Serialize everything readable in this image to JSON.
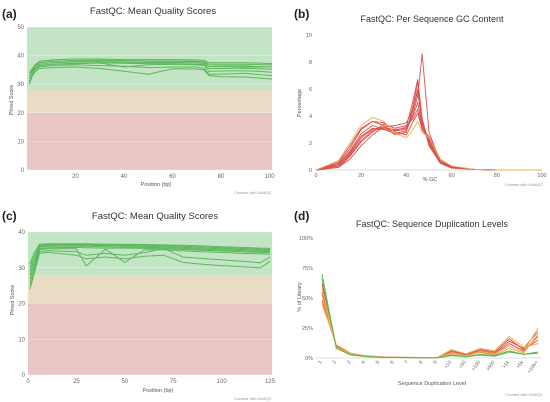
{
  "chart_data": [
    {
      "panel_label": "(a)",
      "type": "line",
      "title": "FastQC: Mean Quality Scores",
      "xlabel": "Position (bp)",
      "ylabel": "Phred Score",
      "xlim": [
        0,
        101
      ],
      "ylim": [
        0,
        50
      ],
      "xticks": [
        20,
        40,
        60,
        80,
        100
      ],
      "yticks": [
        0,
        10,
        20,
        30,
        40,
        50
      ],
      "bands": [
        {
          "from": 28,
          "to": 50,
          "color": "#c3e5c5"
        },
        {
          "from": 20,
          "to": 28,
          "color": "#e8dcc4"
        },
        {
          "from": 0,
          "to": 20,
          "color": "#e8c6c6"
        }
      ],
      "series_color": "#5cb85c",
      "credit": "Created with MultiQC",
      "x": [
        1,
        3,
        5,
        10,
        20,
        30,
        40,
        50,
        60,
        70,
        73,
        75,
        80,
        90,
        95,
        101
      ],
      "series": [
        {
          "values": [
            34,
            36.5,
            38,
            38.5,
            38.8,
            38.8,
            38.6,
            38.6,
            38.6,
            38.5,
            38.3,
            37.5,
            37.5,
            37.5,
            37.4,
            37.2
          ]
        },
        {
          "values": [
            33,
            36,
            37.5,
            38,
            38.3,
            38.4,
            38.2,
            38.1,
            38.1,
            38.0,
            37.8,
            37.0,
            37.0,
            37.0,
            36.9,
            36.7
          ]
        },
        {
          "values": [
            32,
            35,
            37,
            37.5,
            37.8,
            37.9,
            37.7,
            37.6,
            37.6,
            37.5,
            37.2,
            36.3,
            36.4,
            36.4,
            36.2,
            36.0
          ]
        },
        {
          "values": [
            31,
            34.5,
            36.5,
            37,
            37.3,
            37.5,
            37.3,
            37.2,
            37.2,
            37.0,
            36.8,
            35.5,
            35.5,
            35.6,
            35.4,
            35.2
          ]
        },
        {
          "values": [
            33,
            35.5,
            36.5,
            37,
            37.2,
            37.4,
            36,
            36.8,
            37,
            36.8,
            36.5,
            34.5,
            34.6,
            34.7,
            34.5,
            34.2
          ]
        },
        {
          "values": [
            30,
            35,
            36,
            36.5,
            36.8,
            36.5,
            36.3,
            35.8,
            36,
            36.0,
            35.5,
            33.5,
            33.5,
            33.8,
            33.4,
            33.0
          ]
        },
        {
          "values": [
            31,
            34,
            35.5,
            35.8,
            36,
            35.5,
            34.5,
            33.5,
            35.4,
            35.3,
            35.0,
            33.0,
            32.6,
            32.5,
            32.2,
            31.8
          ]
        },
        {
          "values": [
            34,
            36,
            37.5,
            38,
            38.2,
            38.3,
            38.2,
            38.0,
            38.0,
            37.9,
            37.7,
            36.2,
            36.1,
            36.0,
            36.0,
            36.0
          ]
        }
      ]
    },
    {
      "panel_label": "(b)",
      "type": "line",
      "title": "FastQC: Per Sequence GC Content",
      "xlabel": "% GC",
      "ylabel": "Percentage",
      "xlim": [
        0,
        100
      ],
      "ylim": [
        0,
        10
      ],
      "xticks": [
        0,
        20,
        40,
        60,
        80,
        100
      ],
      "yticks": [
        0,
        2,
        4,
        6,
        8,
        10
      ],
      "credit": "Created with MultiQC",
      "x": [
        0,
        10,
        15,
        20,
        25,
        30,
        35,
        40,
        43,
        45,
        47,
        50,
        55,
        60,
        70,
        80,
        100
      ],
      "series": [
        {
          "color": "#d9534f",
          "values": [
            0,
            0.3,
            1.2,
            2.4,
            3.0,
            3.2,
            2.9,
            3.0,
            4.0,
            5.0,
            3.2,
            2.3,
            0.7,
            0.2,
            0.05,
            0,
            0
          ]
        },
        {
          "color": "#d9534f",
          "values": [
            0,
            0.4,
            1.4,
            2.7,
            3.3,
            3.0,
            2.7,
            2.9,
            4.5,
            6.0,
            3.5,
            2.0,
            0.6,
            0.2,
            0.05,
            0,
            0
          ]
        },
        {
          "color": "#d9534f",
          "values": [
            0,
            0.2,
            1.0,
            2.1,
            2.8,
            3.4,
            3.1,
            3.3,
            3.8,
            4.5,
            3.0,
            2.5,
            0.8,
            0.25,
            0.05,
            0,
            0
          ]
        },
        {
          "color": "#d9534f",
          "values": [
            0,
            0.5,
            1.6,
            3.0,
            3.6,
            3.3,
            2.6,
            2.8,
            4.8,
            6.5,
            3.6,
            1.8,
            0.5,
            0.15,
            0.05,
            0,
            0
          ]
        },
        {
          "color": "#d9534f",
          "values": [
            0,
            0.3,
            1.1,
            2.2,
            2.9,
            3.1,
            3.0,
            3.1,
            4.2,
            5.5,
            8.6,
            2.8,
            0.6,
            0.2,
            0.05,
            0,
            0
          ]
        },
        {
          "color": "#d9534f",
          "values": [
            0,
            0.6,
            1.8,
            3.1,
            3.6,
            3.5,
            2.8,
            2.6,
            3.6,
            4.2,
            3.0,
            2.2,
            0.7,
            0.2,
            0.05,
            0,
            0
          ]
        },
        {
          "color": "#d9534f",
          "values": [
            0,
            0.2,
            0.8,
            1.8,
            2.6,
            3.2,
            3.3,
            3.5,
            4.6,
            5.8,
            3.4,
            2.1,
            0.6,
            0.2,
            0.05,
            0,
            0
          ]
        },
        {
          "color": "#d9534f",
          "values": [
            0,
            0.4,
            1.3,
            2.5,
            3.1,
            3.0,
            2.9,
            3.2,
            5.2,
            6.7,
            3.8,
            1.9,
            0.5,
            0.15,
            0.05,
            0,
            0
          ]
        },
        {
          "color": "#f0ad4e",
          "values": [
            0,
            0.7,
            2.0,
            3.3,
            3.9,
            3.6,
            2.7,
            2.4,
            3.0,
            3.6,
            2.8,
            2.4,
            0.8,
            0.3,
            0.05,
            0,
            0
          ]
        }
      ]
    },
    {
      "panel_label": "(c)",
      "type": "line",
      "title": "FastQC: Mean Quality Scores",
      "xlabel": "Position (bp)",
      "ylabel": "Phred Score",
      "xlim": [
        0,
        126
      ],
      "ylim": [
        0,
        40
      ],
      "xticks": [
        0,
        25,
        50,
        75,
        100,
        125
      ],
      "yticks": [
        0,
        10,
        20,
        30,
        40
      ],
      "bands": [
        {
          "from": 28,
          "to": 40,
          "color": "#c3e5c5"
        },
        {
          "from": 20,
          "to": 28,
          "color": "#e8dcc4"
        },
        {
          "from": 0,
          "to": 20,
          "color": "#e8c6c6"
        }
      ],
      "series_color": "#5cb85c",
      "credit": "Created with MultiQC",
      "x": [
        1,
        3,
        6,
        10,
        25,
        30,
        40,
        50,
        60,
        70,
        80,
        90,
        100,
        110,
        120,
        125
      ],
      "series": [
        {
          "values": [
            30,
            33,
            36.3,
            36.5,
            36.5,
            36.5,
            36.5,
            36.4,
            36.3,
            36.2,
            36.0,
            35.8,
            35.6,
            35.4,
            35.2,
            35.1
          ]
        },
        {
          "values": [
            29,
            32,
            36.0,
            36.3,
            36.3,
            36.3,
            36.2,
            36.1,
            36.0,
            35.9,
            35.7,
            35.5,
            35.3,
            35.1,
            34.9,
            34.8
          ]
        },
        {
          "values": [
            28,
            31,
            35.7,
            36.0,
            36.0,
            36.0,
            35.9,
            35.8,
            35.7,
            35.6,
            35.4,
            35.2,
            35.0,
            34.8,
            34.6,
            34.5
          ]
        },
        {
          "values": [
            27,
            30,
            35.3,
            35.6,
            35.7,
            35.6,
            35.5,
            35.5,
            35.4,
            35.3,
            35.1,
            34.9,
            34.7,
            34.5,
            34.3,
            34.2
          ]
        },
        {
          "values": [
            26,
            29,
            35.0,
            35.3,
            35.3,
            30.5,
            35.2,
            31.5,
            35.0,
            35.0,
            34.7,
            34.5,
            34.3,
            34.0,
            33.9,
            33.8
          ]
        },
        {
          "values": [
            25,
            28,
            34.5,
            34.8,
            34.5,
            33.5,
            34.0,
            33.5,
            34.2,
            35.4,
            33.0,
            32.6,
            32.2,
            31.8,
            31.4,
            33.0
          ]
        },
        {
          "values": [
            24,
            28,
            34.0,
            34.3,
            33.5,
            32.5,
            33.0,
            32.5,
            33.2,
            33.5,
            31.5,
            31.0,
            30.6,
            30.3,
            30.0,
            31.8
          ]
        },
        {
          "values": [
            31,
            34,
            36.6,
            36.7,
            36.7,
            36.7,
            36.6,
            36.6,
            36.5,
            36.4,
            36.3,
            36.1,
            35.9,
            35.7,
            35.5,
            35.4
          ]
        }
      ]
    },
    {
      "panel_label": "(d)",
      "type": "line",
      "title": "FastQC: Sequence Duplication Levels",
      "xlabel": "Sequence Duplication Level",
      "ylabel": "% of Library",
      "ylim": [
        0,
        100
      ],
      "categories": [
        "1",
        "2",
        "3",
        "4",
        "5",
        "6",
        "7",
        "8",
        "9",
        ">10",
        ">50",
        ">100",
        ">500",
        ">1k",
        ">5k",
        ">10k+"
      ],
      "ytick_labels": [
        "0%",
        "25%",
        "50%",
        "75%",
        "100%"
      ],
      "yticks": [
        0,
        25,
        50,
        75,
        100
      ],
      "credit": "Created with MultiQC",
      "series": [
        {
          "color": "#5cb85c",
          "values": [
            70,
            8,
            2.5,
            1.2,
            0.7,
            0.4,
            0.3,
            0.2,
            0.2,
            2,
            1,
            2.5,
            1.5,
            5,
            3,
            4
          ]
        },
        {
          "color": "#d9534f",
          "values": [
            62,
            9,
            3,
            1.5,
            0.8,
            0.5,
            0.4,
            0.3,
            0.3,
            4,
            2,
            5,
            3,
            12,
            6,
            18
          ]
        },
        {
          "color": "#d9534f",
          "values": [
            55,
            9.5,
            3.5,
            1.6,
            0.9,
            0.6,
            0.4,
            0.3,
            0.3,
            5,
            2.5,
            6,
            4,
            14,
            8,
            22
          ]
        },
        {
          "color": "#d9534f",
          "values": [
            48,
            10,
            3.8,
            1.8,
            1.0,
            0.6,
            0.5,
            0.4,
            0.3,
            6,
            3,
            7,
            5,
            16,
            7,
            15
          ]
        },
        {
          "color": "#f0ad4e",
          "values": [
            58,
            8.5,
            3.2,
            1.5,
            0.8,
            0.5,
            0.4,
            0.3,
            0.3,
            4.5,
            2,
            5.5,
            3.5,
            10,
            5,
            25
          ]
        },
        {
          "color": "#f0ad4e",
          "values": [
            52,
            9,
            3.4,
            1.6,
            0.9,
            0.5,
            0.4,
            0.3,
            0.3,
            3.5,
            1.8,
            4.5,
            2.5,
            8,
            4,
            20
          ]
        },
        {
          "color": "#f0ad4e",
          "values": [
            45,
            11,
            4,
            2,
            1.1,
            0.7,
            0.5,
            0.4,
            0.4,
            7,
            3.5,
            8,
            6,
            18,
            9,
            12
          ]
        },
        {
          "color": "#5cb85c",
          "values": [
            66,
            8,
            2.8,
            1.3,
            0.7,
            0.4,
            0.3,
            0.2,
            0.2,
            2.5,
            1.2,
            3,
            2,
            6,
            3,
            5
          ]
        }
      ]
    }
  ]
}
